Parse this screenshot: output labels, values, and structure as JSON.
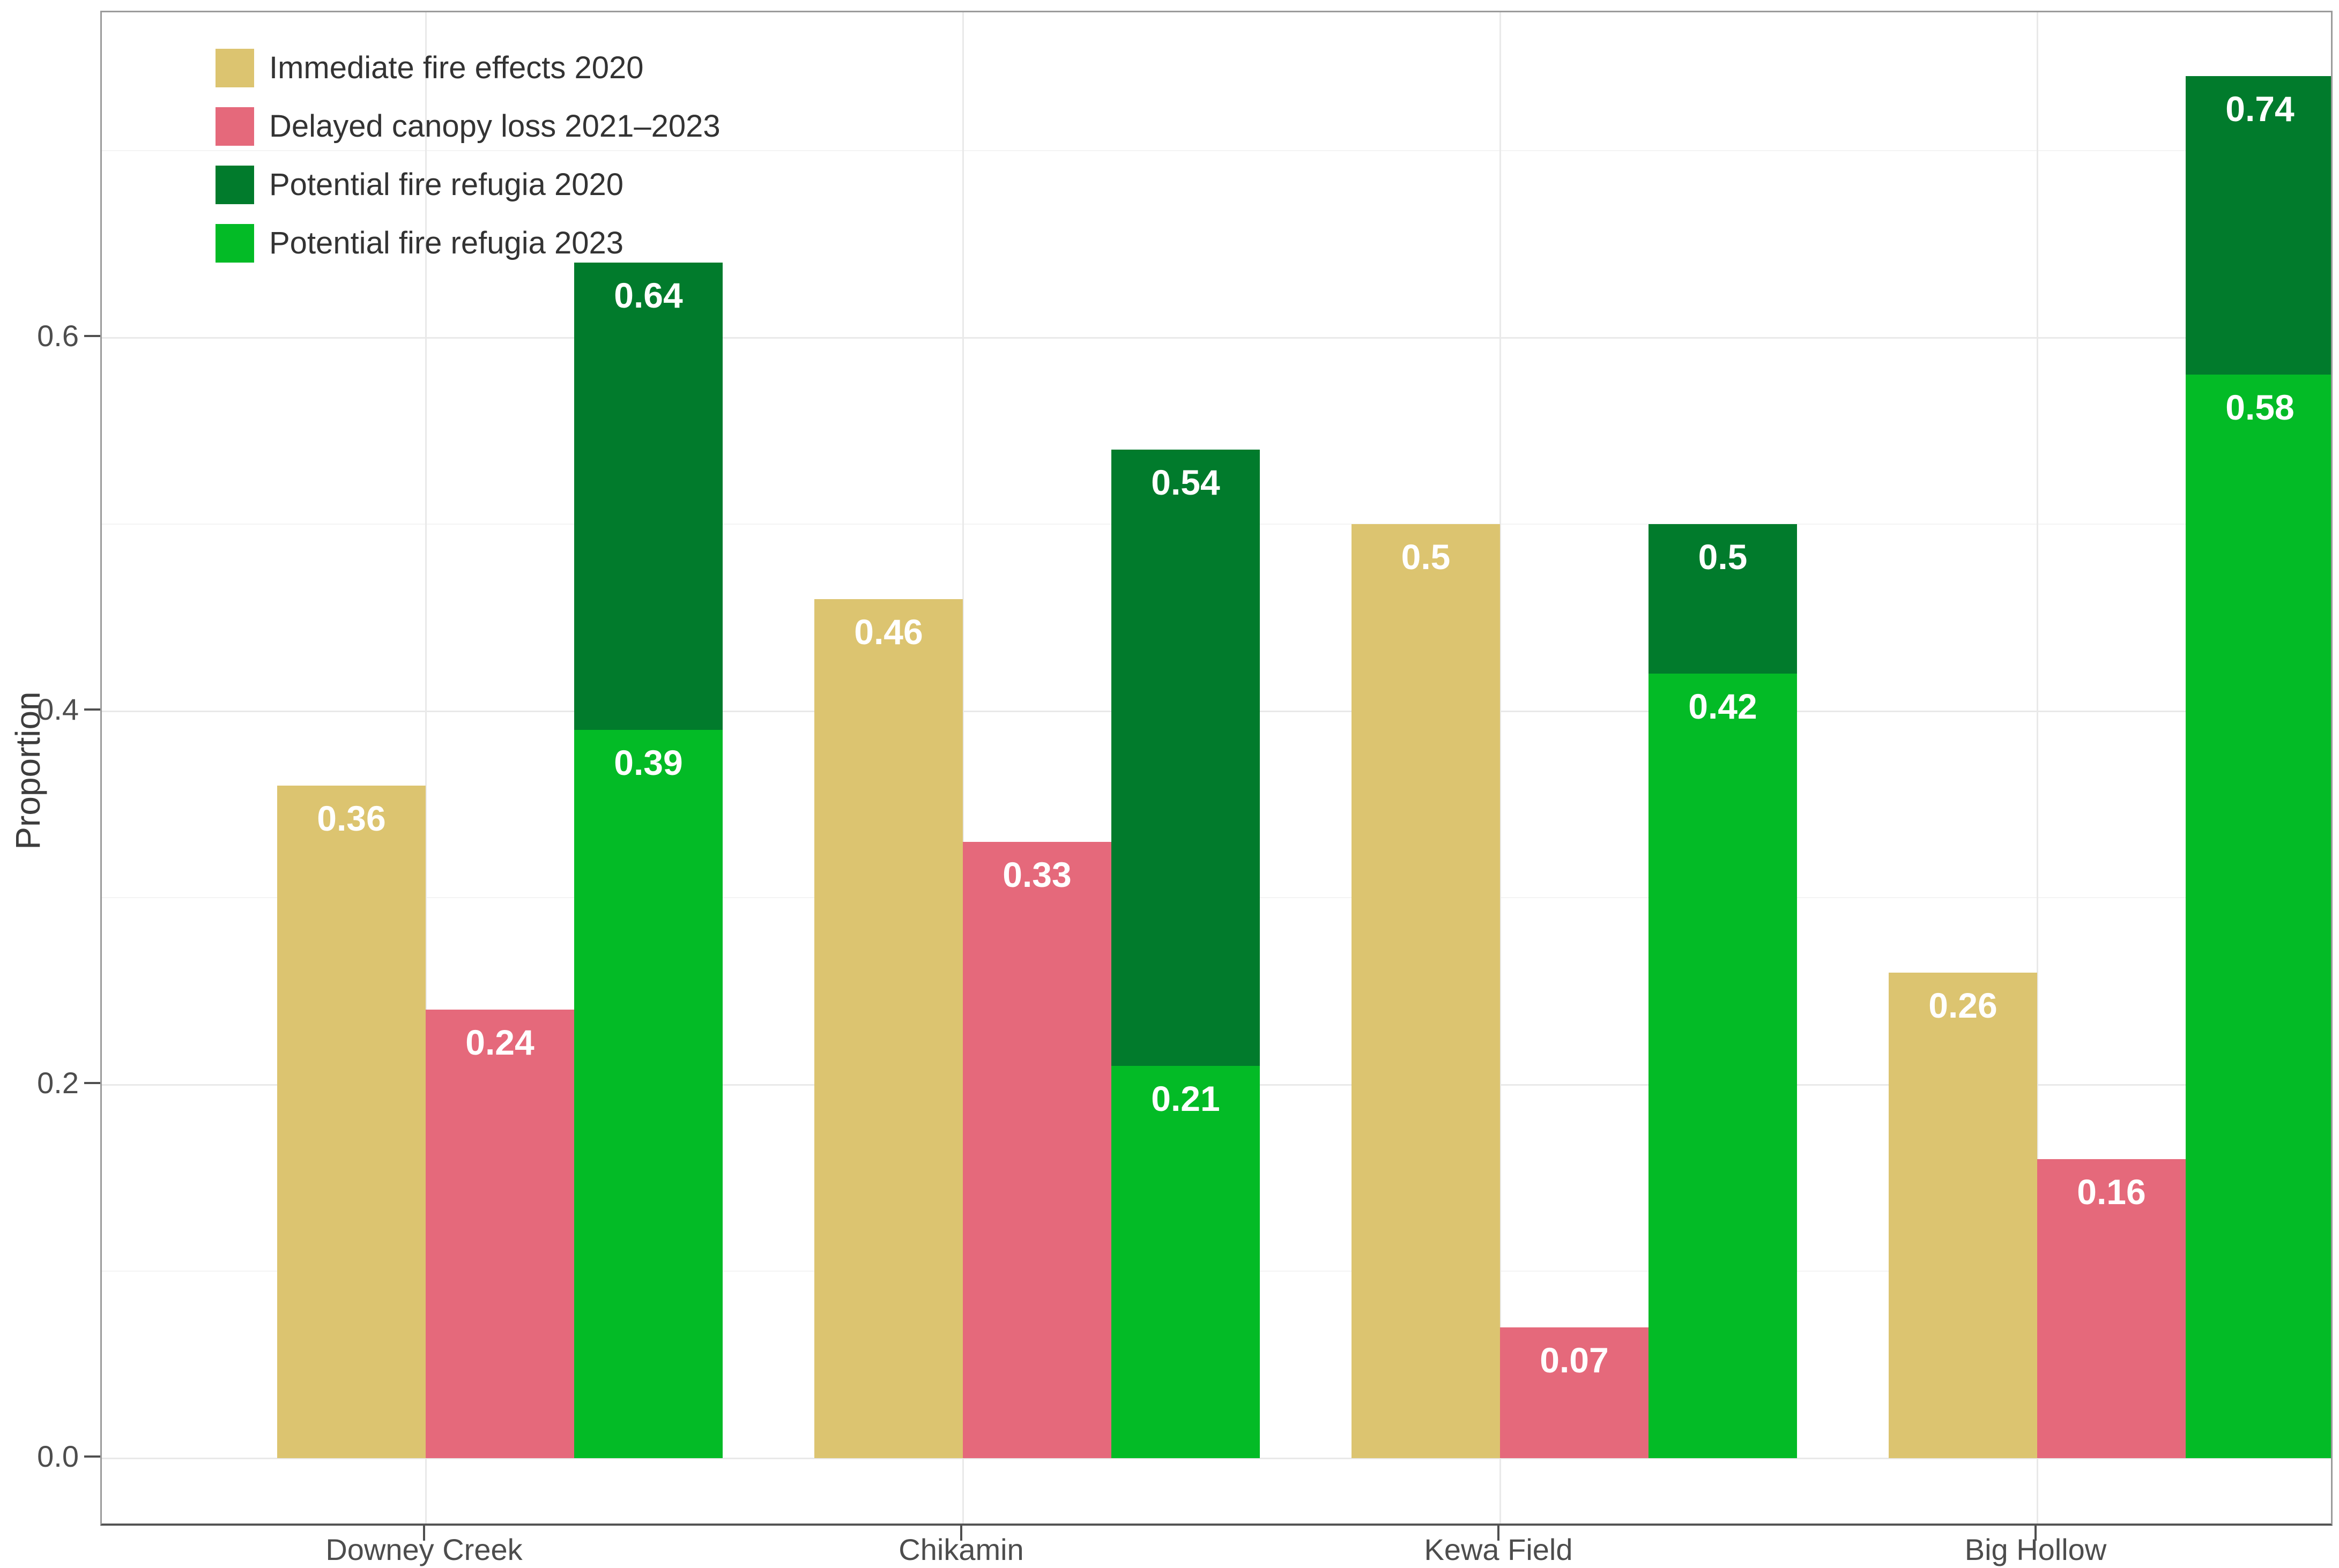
{
  "chart_data": {
    "type": "bar",
    "title": "",
    "categories": [
      "Downey Creek",
      "Chikamin",
      "Kewa Field",
      "Big Hollow"
    ],
    "series": [
      {
        "name": "Immediate fire effects 2020",
        "color": "#DCC470",
        "values": [
          0.36,
          0.46,
          0.5,
          0.26
        ],
        "dodge_slot": 0,
        "overlay": false
      },
      {
        "name": "Delayed canopy loss 2021–2023",
        "color": "#E5697B",
        "values": [
          0.24,
          0.33,
          0.07,
          0.16
        ],
        "dodge_slot": 1,
        "overlay": false
      },
      {
        "name": "Potential fire refugia 2020",
        "color": "#017B2C",
        "values": [
          0.64,
          0.54,
          0.5,
          0.74
        ],
        "dodge_slot": 2,
        "overlay": false
      },
      {
        "name": "Potential fire refugia 2023",
        "color": "#03BB26",
        "values": [
          0.39,
          0.21,
          0.42,
          0.58
        ],
        "dodge_slot": 2,
        "overlay": true
      }
    ],
    "xlabel": "",
    "ylabel": "Proportion",
    "ylim": [
      -0.037,
      0.774
    ],
    "y_major_ticks": [
      0,
      0.2,
      0.4,
      0.6
    ],
    "y_tick_labels": [
      "0.0",
      "0.2",
      "0.4",
      "0.6"
    ],
    "y_minor_ticks": [
      0.1,
      0.3,
      0.5,
      0.7
    ],
    "grid": "horizontal major+minor gridlines; vertical major gridline at each category tick",
    "legend_position": "top-left inside panel",
    "bar_value_labels": {
      "color": "#FFFFFF",
      "weight": "bold",
      "position": "inside-top"
    },
    "note_overlay": "Potential fire refugia 2023 bar is drawn in front of the 2020 refugia bar in the same dodge slot; dark green visible portion spans from the 2023 value up to the 2020 value"
  }
}
